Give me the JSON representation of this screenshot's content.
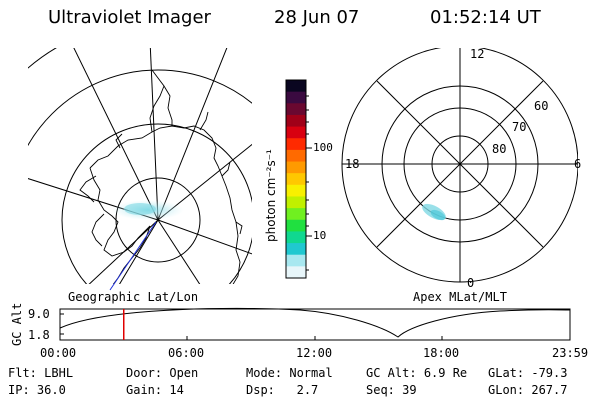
{
  "header": {
    "title": "Ultraviolet Imager",
    "date": "28 Jun 07",
    "time": "01:52:14 UT"
  },
  "left_map": {
    "label": "Geographic Lat/Lon"
  },
  "right_map": {
    "label": "Apex MLat/MLT",
    "mlt_labels": {
      "top": "12",
      "left": "18",
      "right": "6",
      "bottom": "0"
    },
    "mlat_labels": [
      "60",
      "70",
      "80"
    ]
  },
  "colorbar": {
    "unit_label": "photon cm⁻²s⁻¹",
    "ticks": [
      {
        "label": "100",
        "value": 100
      },
      {
        "label": "10",
        "value": 10
      }
    ],
    "colors": [
      "#0a0620",
      "#3a0a40",
      "#6a0830",
      "#a00018",
      "#d80010",
      "#ff2a00",
      "#ff6a00",
      "#ff9a00",
      "#ffc800",
      "#f8f000",
      "#c0f000",
      "#70f020",
      "#20e040",
      "#10d890",
      "#20c8d0",
      "#a8e8f0",
      "#e8f6fa"
    ]
  },
  "altitude_plot": {
    "ylabel": "GC Alt",
    "yticks": [
      "9.0",
      "1.8"
    ],
    "xticks": [
      "00:00",
      "06:00",
      "12:00",
      "18:00",
      "23:59"
    ],
    "current_time_frac": 0.125
  },
  "info": {
    "row1": [
      {
        "key": "Flt:",
        "value": "LBHL"
      },
      {
        "key": "Door:",
        "value": "Open"
      },
      {
        "key": "Mode:",
        "value": "Normal"
      },
      {
        "key": "GC Alt:",
        "value": "6.9 Re"
      },
      {
        "key": "GLat:",
        "value": "-79.3"
      }
    ],
    "row2": [
      {
        "key": "IP:",
        "value": "36.0"
      },
      {
        "key": "Gain:",
        "value": "14"
      },
      {
        "key": "Dsp:",
        "value": "2.7"
      },
      {
        "key": "Seq:",
        "value": "39"
      },
      {
        "key": "GLon:",
        "value": "267.7"
      }
    ]
  }
}
